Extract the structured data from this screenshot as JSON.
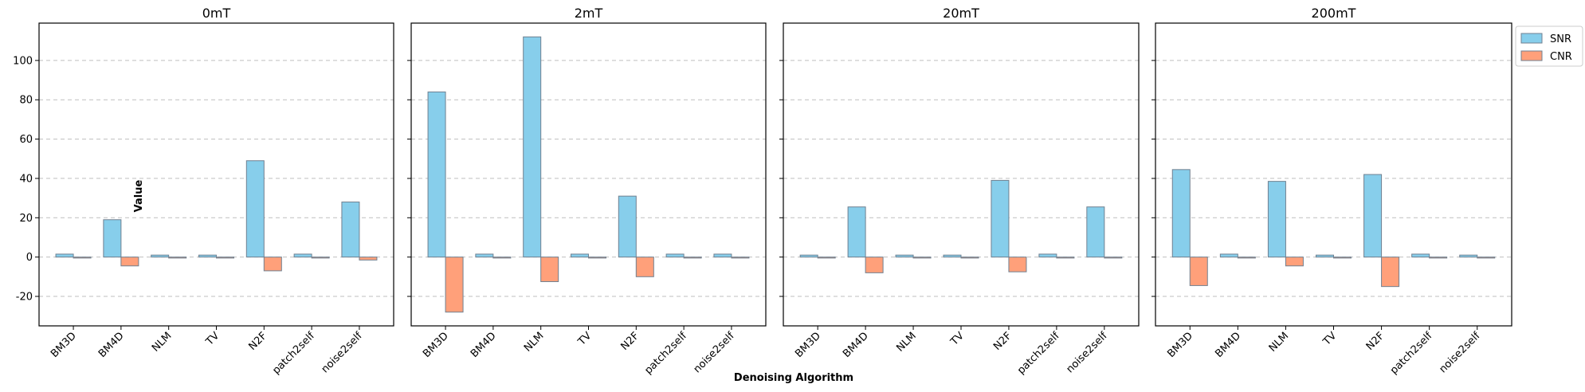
{
  "chart_data": {
    "type": "bar",
    "xlabel": "Denoising Algorithm",
    "ylabel": "Value",
    "ylim": [
      -35,
      119
    ],
    "yticks": [
      -20,
      0,
      20,
      40,
      60,
      80,
      100
    ],
    "grid": "y-dashed",
    "legend_position": "top-right-outside",
    "colors": {
      "SNR": "#87ceeb",
      "CNR": "#ffa07a",
      "edge": "#708090"
    },
    "categories": [
      "BM3D",
      "BM4D",
      "NLM",
      "TV",
      "N2F",
      "patch2self",
      "noise2self"
    ],
    "legend": [
      "SNR",
      "CNR"
    ],
    "panels": [
      {
        "title": "0mT",
        "series": [
          {
            "name": "SNR",
            "values": [
              1.5,
              19,
              1,
              1,
              49,
              1.5,
              28
            ]
          },
          {
            "name": "CNR",
            "values": [
              -0.5,
              -4.5,
              -0.5,
              -0.5,
              -7,
              -0.5,
              -1.5
            ]
          }
        ]
      },
      {
        "title": "2mT",
        "series": [
          {
            "name": "SNR",
            "values": [
              84,
              1.5,
              112,
              1.5,
              31,
              1.5,
              1.5
            ]
          },
          {
            "name": "CNR",
            "values": [
              -28,
              -0.5,
              -12.5,
              -0.5,
              -10,
              -0.5,
              -0.5
            ]
          }
        ]
      },
      {
        "title": "20mT",
        "series": [
          {
            "name": "SNR",
            "values": [
              1,
              25.5,
              1,
              1,
              39,
              1.5,
              25.5
            ]
          },
          {
            "name": "CNR",
            "values": [
              -0.5,
              -8,
              -0.5,
              -0.5,
              -7.5,
              -0.5,
              -0.5
            ]
          }
        ]
      },
      {
        "title": "200mT",
        "series": [
          {
            "name": "SNR",
            "values": [
              44.5,
              1.5,
              38.5,
              1,
              42,
              1.5,
              1
            ]
          },
          {
            "name": "CNR",
            "values": [
              -14.5,
              -0.5,
              -4.5,
              -0.5,
              -15,
              -0.5,
              -0.5
            ]
          }
        ]
      }
    ]
  }
}
